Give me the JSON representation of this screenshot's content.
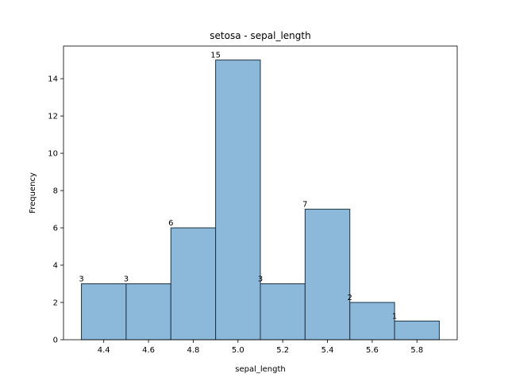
{
  "chart_data": {
    "type": "bar",
    "title": "setosa - sepal_length",
    "xlabel": "sepal_length",
    "ylabel": "Frequency",
    "bins": [
      {
        "start": 4.3,
        "end": 4.5,
        "count": 3
      },
      {
        "start": 4.5,
        "end": 4.7,
        "count": 3
      },
      {
        "start": 4.7,
        "end": 4.9,
        "count": 6
      },
      {
        "start": 4.9,
        "end": 5.1,
        "count": 15
      },
      {
        "start": 5.1,
        "end": 5.3,
        "count": 3
      },
      {
        "start": 5.3,
        "end": 5.5,
        "count": 7
      },
      {
        "start": 5.5,
        "end": 5.7,
        "count": 2
      },
      {
        "start": 5.7,
        "end": 5.9,
        "count": 1
      }
    ],
    "xlim": [
      4.22,
      5.98
    ],
    "ylim": [
      0,
      15.75
    ],
    "xticks": [
      "4.4",
      "4.6",
      "4.8",
      "5.0",
      "5.2",
      "5.4",
      "5.6",
      "5.8"
    ],
    "yticks": [
      "0",
      "2",
      "4",
      "6",
      "8",
      "10",
      "12",
      "14"
    ],
    "bar_color": "#8cb8d9",
    "bar_edge_color": "#1f3347",
    "grid": false,
    "legend": "none"
  }
}
